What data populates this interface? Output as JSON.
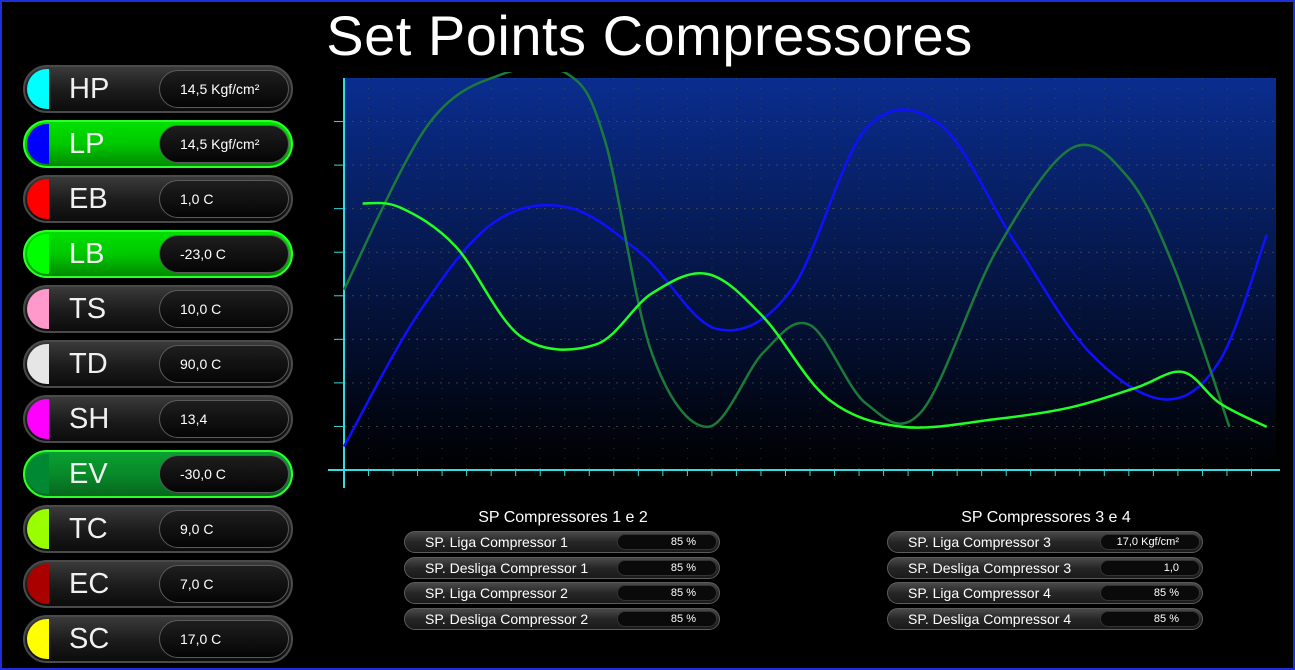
{
  "title": "Set Points Compressores",
  "tags": [
    {
      "code": "HP",
      "value": "14,5 Kgf/cm²",
      "color": "#00ffff",
      "state": "normal"
    },
    {
      "code": "LP",
      "value": "14,5 Kgf/cm²",
      "color": "#0000ff",
      "state": "active"
    },
    {
      "code": "EB",
      "value": "1,0 C",
      "color": "#ff0000",
      "state": "normal"
    },
    {
      "code": "LB",
      "value": "-23,0 C",
      "color": "#00ff00",
      "state": "active"
    },
    {
      "code": "TS",
      "value": "10,0 C",
      "color": "#ff99cc",
      "state": "normal"
    },
    {
      "code": "TD",
      "value": "90,0 C",
      "color": "#e6e6e6",
      "state": "normal"
    },
    {
      "code": "SH",
      "value": "13,4",
      "color": "#ff00ff",
      "state": "normal"
    },
    {
      "code": "EV",
      "value": "-30,0 C",
      "color": "#008833",
      "state": "dim-active"
    },
    {
      "code": "TC",
      "value": "9,0 C",
      "color": "#99ff00",
      "state": "normal"
    },
    {
      "code": "EC",
      "value": "7,0 C",
      "color": "#aa0000",
      "state": "normal"
    },
    {
      "code": "SC",
      "value": "17,0 C",
      "color": "#ffff00",
      "state": "normal"
    }
  ],
  "sp_group_1": {
    "title": "SP Compressores 1 e 2",
    "rows": [
      {
        "label": "SP. Liga Compressor 1",
        "value": "85 %"
      },
      {
        "label": "SP. Desliga Compressor 1",
        "value": "85 %"
      },
      {
        "label": "SP. Liga Compressor 2",
        "value": "85 %"
      },
      {
        "label": "SP. Desliga Compressor 2",
        "value": "85 %"
      }
    ]
  },
  "sp_group_2": {
    "title": "SP Compressores 3 e 4",
    "rows": [
      {
        "label": "SP. Liga Compressor 3",
        "value": "17,0 Kgf/cm²"
      },
      {
        "label": "SP. Desliga Compressor 3",
        "value": "1,0"
      },
      {
        "label": "SP. Liga Compressor 4",
        "value": "85 %"
      },
      {
        "label": "SP. Desliga Compressor 4",
        "value": "85 %"
      }
    ]
  },
  "chart_data": {
    "type": "line",
    "xlim": [
      0,
      100
    ],
    "ylim": [
      0,
      100
    ],
    "grid": true,
    "colors": {
      "axis": "#33dddd",
      "background_top": "#0a2d8f",
      "background_bottom": "#000000"
    },
    "series": [
      {
        "color": "#1010ff",
        "x": [
          0,
          8,
          16,
          24,
          32,
          40,
          48,
          56,
          64,
          72,
          80,
          88,
          94,
          99
        ],
        "y": [
          6,
          40,
          63,
          67,
          55,
          36,
          46,
          87,
          88,
          58,
          30,
          18,
          28,
          60
        ]
      },
      {
        "color": "#1b7a3a",
        "x": [
          0,
          9,
          17,
          24,
          28,
          33,
          39,
          45,
          50,
          56,
          62,
          70,
          78,
          84,
          89,
          95
        ],
        "y": [
          46,
          88,
          101,
          101,
          84,
          30,
          11,
          30,
          37,
          17,
          15,
          56,
          82,
          75,
          52,
          11
        ]
      },
      {
        "color": "#22ff22",
        "x": [
          2,
          6,
          12,
          19,
          27,
          33,
          39,
          45,
          52,
          60,
          70,
          78,
          85,
          90,
          94,
          99
        ],
        "y": [
          68,
          67,
          57,
          34,
          32,
          45,
          50,
          39,
          18,
          11,
          13,
          16,
          21,
          25,
          17,
          11
        ]
      }
    ]
  }
}
